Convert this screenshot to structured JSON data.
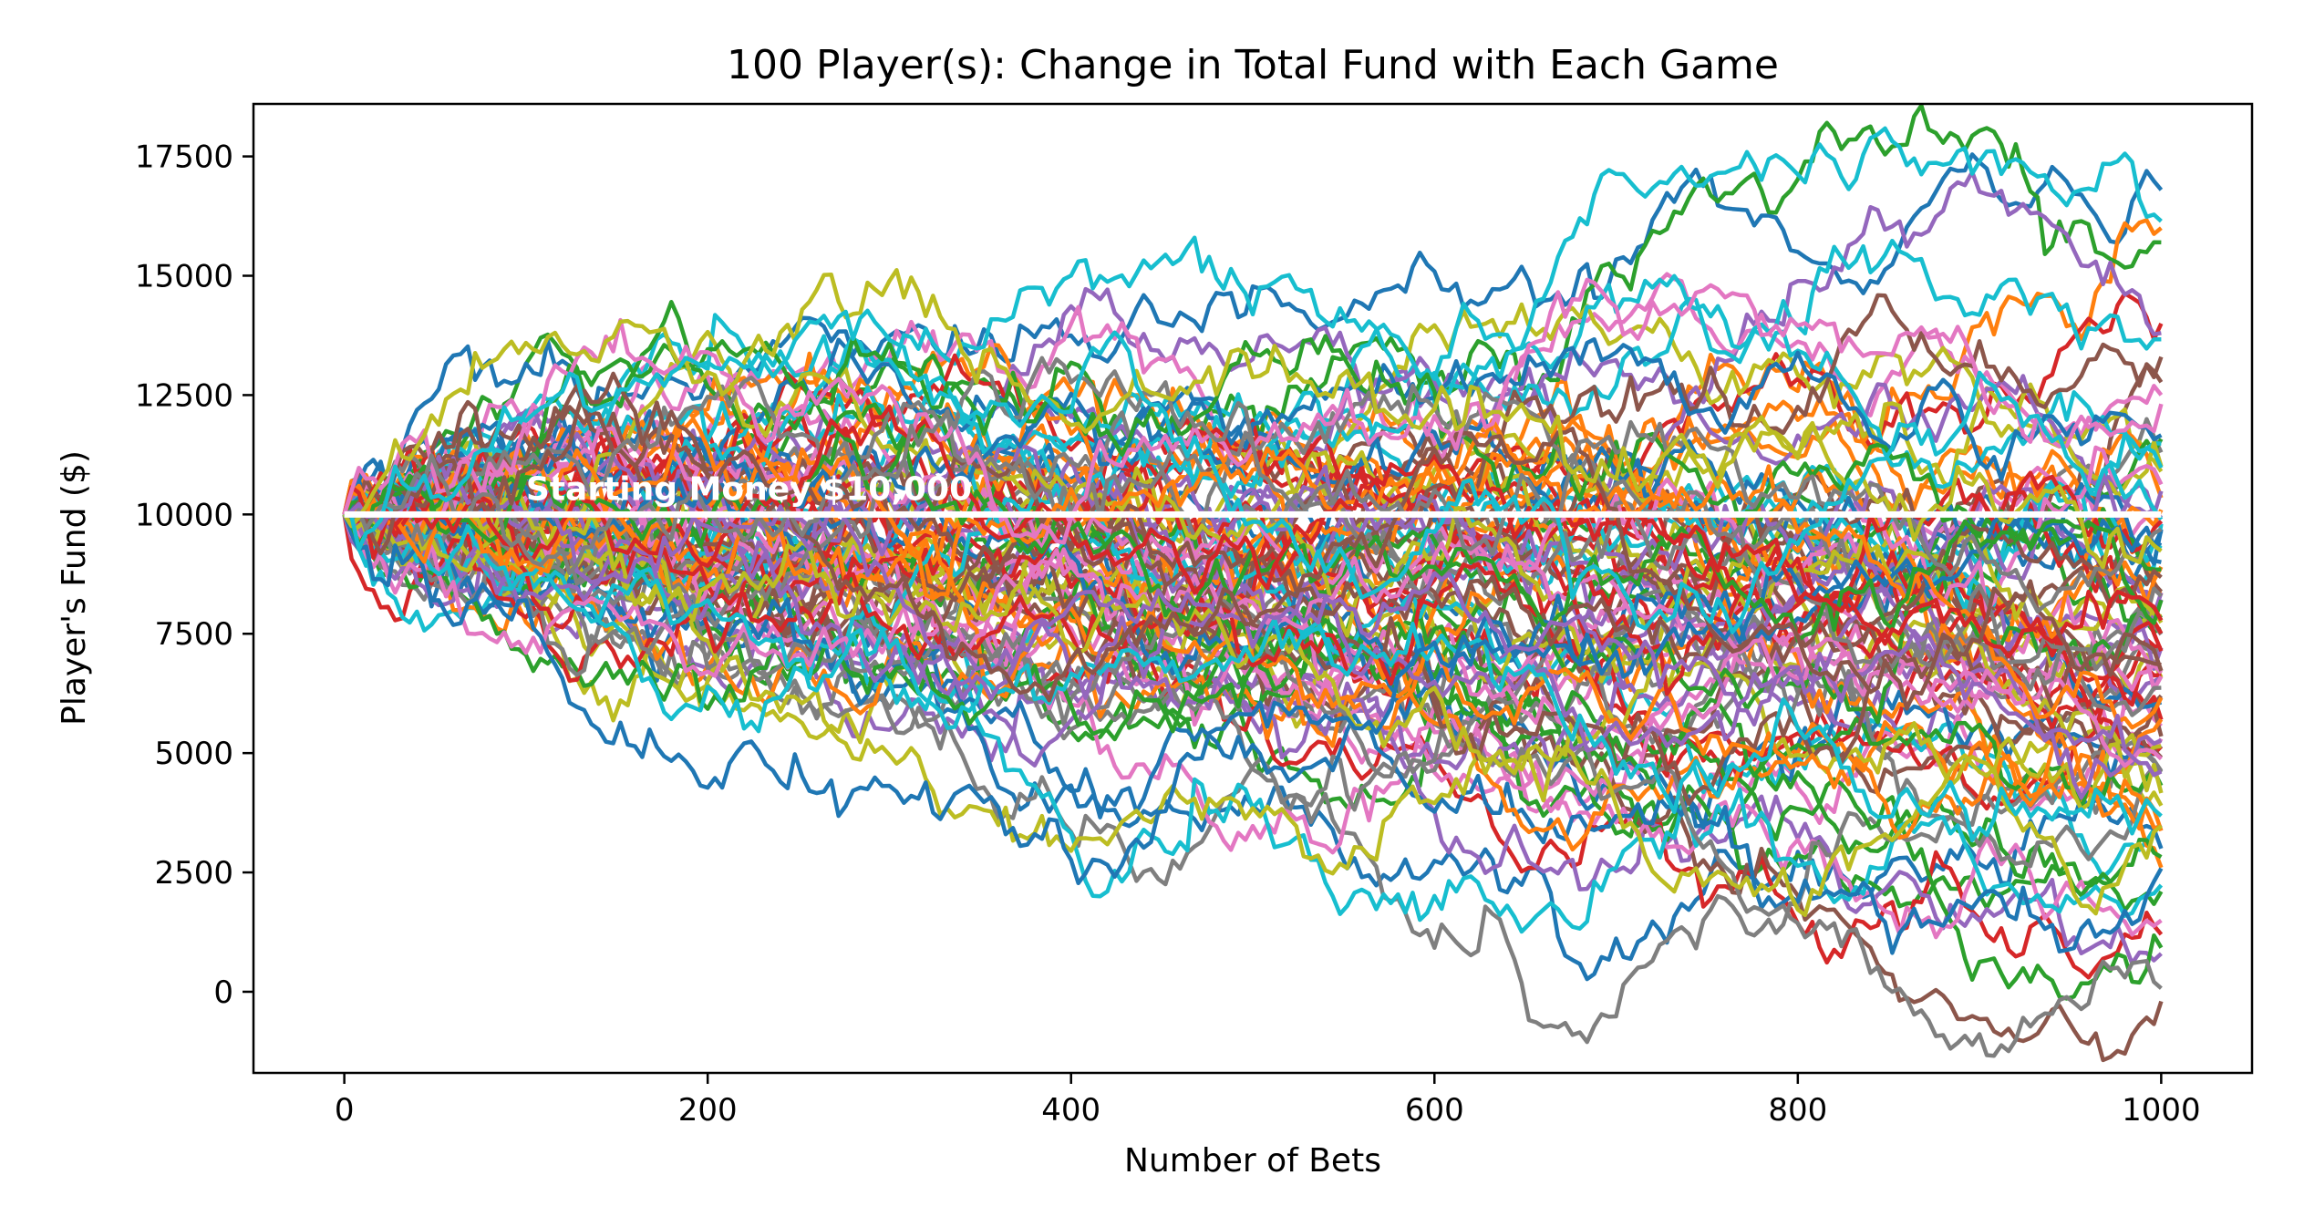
{
  "chart_data": {
    "type": "line",
    "title": "100 Player(s): Change in Total Fund with Each Game",
    "xlabel": "Number of Bets",
    "ylabel": "Player's Fund ($)",
    "xlim": [
      -50,
      1050
    ],
    "ylim": [
      -1700,
      18600
    ],
    "xticks": [
      0,
      200,
      400,
      600,
      800,
      1000
    ],
    "yticks": [
      0,
      2500,
      5000,
      7500,
      10000,
      12500,
      15000,
      17500
    ],
    "grid": false,
    "legend": "none",
    "num_series": 100,
    "bets_per_game": 1000,
    "starting_money": 10000,
    "reference_line": {
      "y": 10000,
      "x_range": [
        0,
        1000
      ],
      "color": "#ffffff"
    },
    "annotation": {
      "text": "Starting Money $10,000",
      "x": 100,
      "y": 10300
    },
    "palette": [
      "#1f77b4",
      "#ff7f0e",
      "#2ca02c",
      "#d62728",
      "#9467bd",
      "#8c564b",
      "#e377c2",
      "#7f7f7f",
      "#bcbd22",
      "#17becf"
    ],
    "final_values_sample": [
      16800,
      16000,
      15700,
      14000,
      13800,
      13300,
      12500,
      11300,
      10900,
      9800,
      9000,
      8300,
      7600,
      7200,
      6600,
      6200,
      5300,
      4600,
      3900,
      3500,
      3000,
      2600,
      2100,
      1200,
      800,
      -200
    ]
  }
}
